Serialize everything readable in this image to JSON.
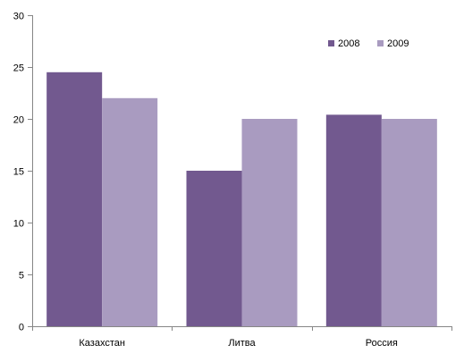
{
  "chart_data": {
    "type": "bar",
    "title": "",
    "xlabel": "",
    "ylabel": "",
    "categories": [
      "Казахстан",
      "Литва",
      "Россия"
    ],
    "series": [
      {
        "name": "2008",
        "values": [
          24.5,
          15.0,
          20.4
        ],
        "color": "#72598f"
      },
      {
        "name": "2009",
        "values": [
          22.0,
          20.0,
          20.0
        ],
        "color": "#a99bc0"
      }
    ],
    "ylim": [
      0,
      30
    ],
    "yticks": [
      0,
      5,
      10,
      15,
      20,
      25,
      30
    ],
    "grid": false,
    "legend_position": "top-right"
  }
}
